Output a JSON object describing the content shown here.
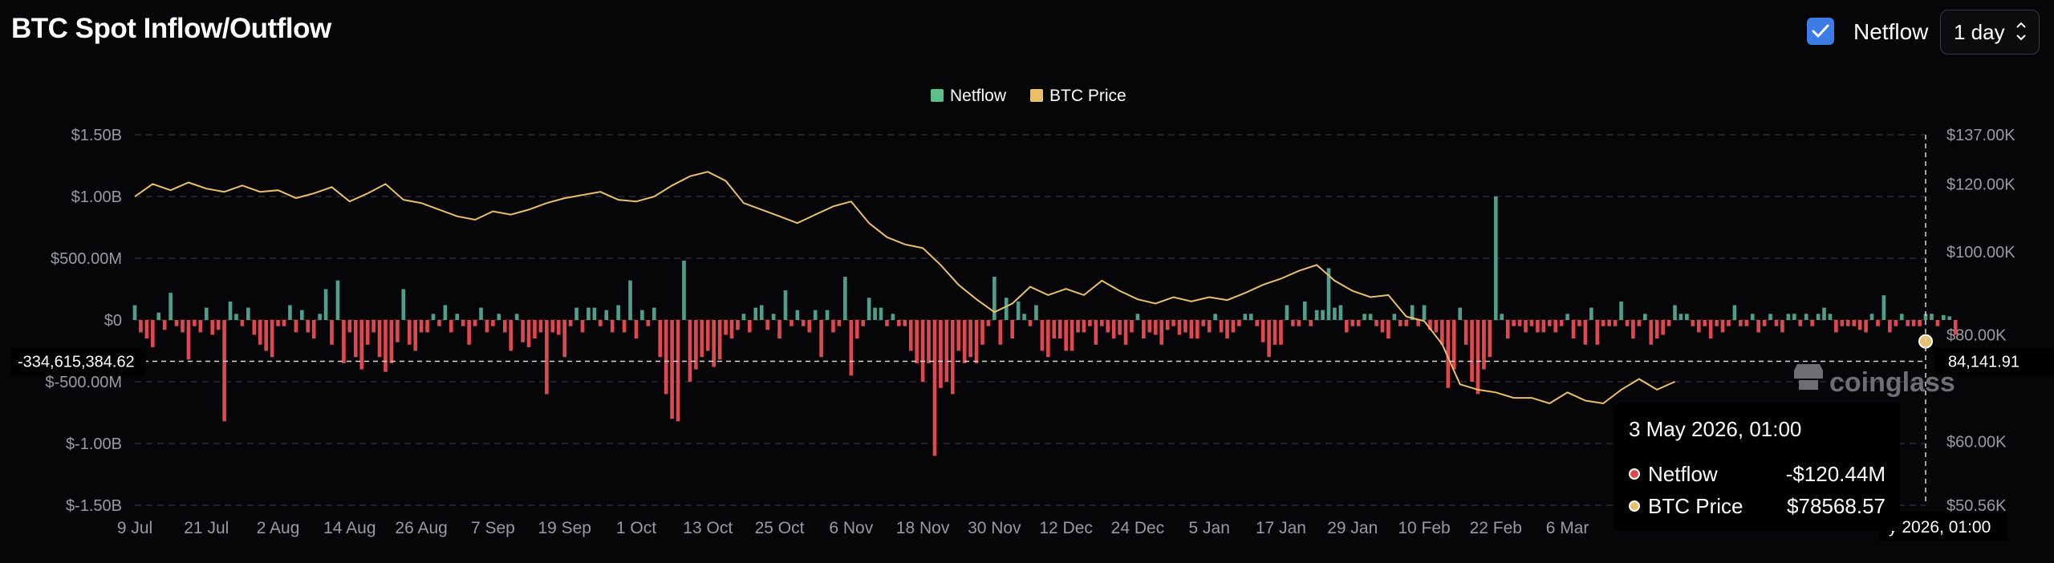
{
  "title": "BTC Spot Inflow/Outflow",
  "controls": {
    "netflow_checkbox_label": "Netflow",
    "netflow_checked": true,
    "interval_value": "1 day"
  },
  "colors": {
    "positive": "#4fa08b",
    "negative": "#e0474f",
    "price": "#e8c06a",
    "grid": "#2a2a30",
    "axis_text": "#9a9aa2",
    "checkbox": "#3d7be6"
  },
  "crosshair": {
    "left_value": "-334,615,384.62",
    "right_value": "84,141.91",
    "bottom_label": "y 2026, 01:00"
  },
  "tooltip": {
    "title": "3 May 2026, 01:00",
    "rows": [
      {
        "name": "Netflow",
        "value": "-$120.44M",
        "color": "#e0474f"
      },
      {
        "name": "BTC Price",
        "value": "$78568.57",
        "color": "#e8c06a"
      }
    ]
  },
  "watermark": "coinglass",
  "chart_data": {
    "type": "bar",
    "legend": [
      {
        "name": "Netflow",
        "color": "#5cc08a"
      },
      {
        "name": "BTC Price",
        "color": "#e8c06a"
      }
    ],
    "legend_position": "top-center",
    "grid": true,
    "x_tick_labels": [
      "9 Jul",
      "21 Jul",
      "2 Aug",
      "14 Aug",
      "26 Aug",
      "7 Sep",
      "19 Sep",
      "1 Oct",
      "13 Oct",
      "25 Oct",
      "6 Nov",
      "18 Nov",
      "30 Nov",
      "12 Dec",
      "24 Dec",
      "5 Jan",
      "17 Jan",
      "29 Jan",
      "10 Feb",
      "22 Feb",
      "6 Mar"
    ],
    "y_left": {
      "ticks": [
        1.5,
        1.0,
        0.5,
        0,
        -0.5,
        -1.0,
        -1.5
      ],
      "labels": [
        "$1.50B",
        "$1.00B",
        "$500.00M",
        "$0",
        "$-500.00M",
        "$-1.00B",
        "$-1.50B"
      ],
      "range": [
        -1.5,
        1.5
      ],
      "unit": "billions USD"
    },
    "y_right": {
      "ticks": [
        137000,
        120000,
        100000,
        80000,
        60000,
        50560
      ],
      "labels": [
        "$137.00K",
        "$120.00K",
        "$100.00K",
        "$80.00K",
        "$60.00K",
        "$50.56K"
      ],
      "range": [
        50560,
        137000
      ],
      "scale": "log"
    },
    "x_range_days": [
      0,
      300
    ],
    "netflow_day_step": 1,
    "netflow_values_billion": [
      0.12,
      -0.1,
      -0.15,
      -0.22,
      0.06,
      -0.08,
      0.22,
      -0.05,
      -0.1,
      -0.32,
      -0.05,
      -0.1,
      0.1,
      -0.12,
      -0.08,
      -0.82,
      0.15,
      0.05,
      -0.05,
      0.1,
      -0.12,
      -0.2,
      -0.25,
      -0.3,
      -0.05,
      -0.05,
      0.12,
      -0.1,
      0.08,
      -0.1,
      -0.15,
      0.05,
      0.25,
      -0.2,
      0.32,
      -0.35,
      -0.1,
      -0.3,
      -0.4,
      -0.2,
      -0.1,
      -0.3,
      -0.42,
      -0.35,
      -0.18,
      0.25,
      -0.2,
      -0.25,
      -0.1,
      -0.1,
      0.05,
      -0.05,
      0.12,
      -0.1,
      0.05,
      -0.05,
      -0.2,
      -0.05,
      0.1,
      -0.1,
      -0.05,
      0.05,
      -0.1,
      -0.25,
      0.05,
      -0.18,
      -0.22,
      -0.15,
      -0.1,
      -0.6,
      -0.1,
      -0.12,
      -0.3,
      -0.05,
      0.1,
      -0.1,
      0.1,
      0.1,
      -0.05,
      0.08,
      -0.1,
      0.12,
      -0.1,
      0.32,
      -0.15,
      0.08,
      -0.05,
      0.1,
      -0.3,
      -0.6,
      -0.8,
      -0.82,
      0.48,
      -0.5,
      -0.4,
      -0.3,
      -0.25,
      -0.38,
      -0.32,
      -0.12,
      -0.15,
      -0.08,
      0.05,
      -0.1,
      0.1,
      0.12,
      -0.08,
      0.05,
      -0.15,
      0.24,
      -0.05,
      0.08,
      -0.05,
      -0.1,
      0.08,
      -0.3,
      0.08,
      -0.1,
      -0.05,
      0.35,
      -0.45,
      -0.15,
      -0.05,
      0.18,
      0.1,
      0.1,
      -0.05,
      0.05,
      -0.05,
      -0.05,
      -0.25,
      -0.35,
      -0.5,
      -0.35,
      -1.1,
      -0.55,
      -0.5,
      -0.6,
      -0.25,
      -0.35,
      -0.3,
      -0.35,
      -0.2,
      -0.05,
      0.35,
      -0.2,
      0.18,
      -0.15,
      0.15,
      0.05,
      -0.05,
      0.12,
      -0.25,
      -0.3,
      -0.15,
      -0.15,
      -0.25,
      -0.25,
      -0.1,
      -0.1,
      -0.05,
      -0.2,
      -0.05,
      -0.1,
      -0.15,
      -0.12,
      -0.2,
      -0.1,
      0.05,
      -0.15,
      -0.1,
      -0.12,
      -0.2,
      -0.08,
      -0.05,
      -0.12,
      -0.1,
      -0.15,
      -0.15,
      -0.05,
      -0.1,
      0.05,
      -0.1,
      -0.15,
      -0.1,
      -0.05,
      0.05,
      0.05,
      -0.05,
      -0.18,
      -0.3,
      -0.2,
      -0.2,
      0.12,
      -0.05,
      -0.05,
      0.15,
      -0.05,
      0.08,
      0.08,
      0.42,
      0.1,
      0.12,
      -0.1,
      -0.05,
      -0.05,
      0.05,
      0.05,
      -0.05,
      -0.1,
      -0.15,
      0.05,
      -0.05,
      -0.05,
      0.12,
      -0.05,
      0.12,
      -0.08,
      -0.1,
      -0.2,
      -0.55,
      -0.4,
      0.1,
      -0.2,
      -0.5,
      -0.6,
      -0.4,
      -0.3,
      1.0,
      0.05,
      -0.15,
      -0.05,
      -0.05,
      -0.1,
      -0.05,
      -0.1,
      -0.1,
      -0.05,
      -0.1,
      -0.05,
      0.05,
      -0.15,
      -0.05,
      -0.2,
      0.1,
      -0.2,
      -0.05,
      -0.05,
      -0.05,
      0.15,
      -0.05,
      -0.15,
      -0.05,
      0.05,
      -0.2,
      -0.15,
      -0.12,
      -0.05,
      0.12,
      0.05,
      0.05,
      -0.05,
      -0.1,
      -0.05,
      -0.15,
      -0.05,
      -0.1,
      -0.05,
      0.12,
      -0.05,
      -0.05,
      0.05,
      -0.1,
      -0.05,
      0.05,
      -0.05,
      -0.1,
      0.05,
      0.05,
      -0.05,
      0.05,
      -0.05,
      0.05,
      0.1,
      0.05,
      -0.1,
      -0.05,
      -0.05,
      -0.05,
      -0.08,
      -0.1,
      0.05,
      -0.05,
      0.2,
      -0.1,
      -0.05,
      0.05,
      -0.05,
      -0.05,
      -0.05,
      0.05,
      0.05,
      -0.05,
      0.04,
      0.03,
      -0.12
    ],
    "btc_price_points": [
      [
        0,
        116000
      ],
      [
        3,
        120000
      ],
      [
        6,
        118000
      ],
      [
        9,
        120500
      ],
      [
        12,
        118500
      ],
      [
        15,
        117500
      ],
      [
        18,
        119500
      ],
      [
        21,
        117500
      ],
      [
        24,
        118000
      ],
      [
        27,
        115500
      ],
      [
        30,
        117000
      ],
      [
        33,
        119000
      ],
      [
        36,
        114500
      ],
      [
        39,
        117000
      ],
      [
        42,
        120000
      ],
      [
        45,
        115000
      ],
      [
        48,
        114000
      ],
      [
        51,
        112000
      ],
      [
        54,
        110000
      ],
      [
        57,
        109000
      ],
      [
        60,
        111500
      ],
      [
        63,
        110500
      ],
      [
        66,
        112000
      ],
      [
        69,
        114000
      ],
      [
        72,
        115500
      ],
      [
        75,
        116500
      ],
      [
        78,
        117500
      ],
      [
        81,
        115000
      ],
      [
        84,
        114500
      ],
      [
        87,
        116000
      ],
      [
        90,
        119500
      ],
      [
        93,
        122500
      ],
      [
        96,
        124000
      ],
      [
        99,
        121000
      ],
      [
        102,
        114000
      ],
      [
        105,
        112000
      ],
      [
        108,
        110000
      ],
      [
        111,
        108000
      ],
      [
        114,
        110500
      ],
      [
        117,
        113000
      ],
      [
        120,
        114500
      ],
      [
        123,
        108000
      ],
      [
        126,
        104000
      ],
      [
        129,
        102000
      ],
      [
        132,
        101000
      ],
      [
        135,
        96500
      ],
      [
        138,
        91500
      ],
      [
        141,
        88000
      ],
      [
        144,
        85000
      ],
      [
        147,
        87000
      ],
      [
        150,
        91000
      ],
      [
        153,
        89000
      ],
      [
        156,
        90500
      ],
      [
        159,
        89000
      ],
      [
        162,
        92500
      ],
      [
        165,
        90000
      ],
      [
        168,
        88000
      ],
      [
        171,
        87000
      ],
      [
        174,
        88500
      ],
      [
        177,
        87500
      ],
      [
        180,
        88500
      ],
      [
        183,
        87800
      ],
      [
        186,
        89500
      ],
      [
        189,
        91500
      ],
      [
        192,
        93000
      ],
      [
        195,
        95000
      ],
      [
        198,
        96500
      ],
      [
        201,
        92500
      ],
      [
        204,
        90000
      ],
      [
        207,
        88500
      ],
      [
        210,
        89000
      ],
      [
        213,
        84000
      ],
      [
        216,
        83000
      ],
      [
        219,
        78000
      ],
      [
        222,
        70000
      ],
      [
        225,
        69000
      ],
      [
        228,
        68500
      ],
      [
        231,
        67500
      ],
      [
        234,
        67500
      ],
      [
        237,
        66500
      ],
      [
        240,
        68500
      ],
      [
        243,
        67000
      ],
      [
        246,
        66500
      ],
      [
        249,
        69000
      ],
      [
        252,
        71000
      ],
      [
        255,
        69000
      ],
      [
        258,
        70500
      ]
    ],
    "btc_price_end_point": [
      300,
      78568.57
    ],
    "hover_index": 300
  }
}
